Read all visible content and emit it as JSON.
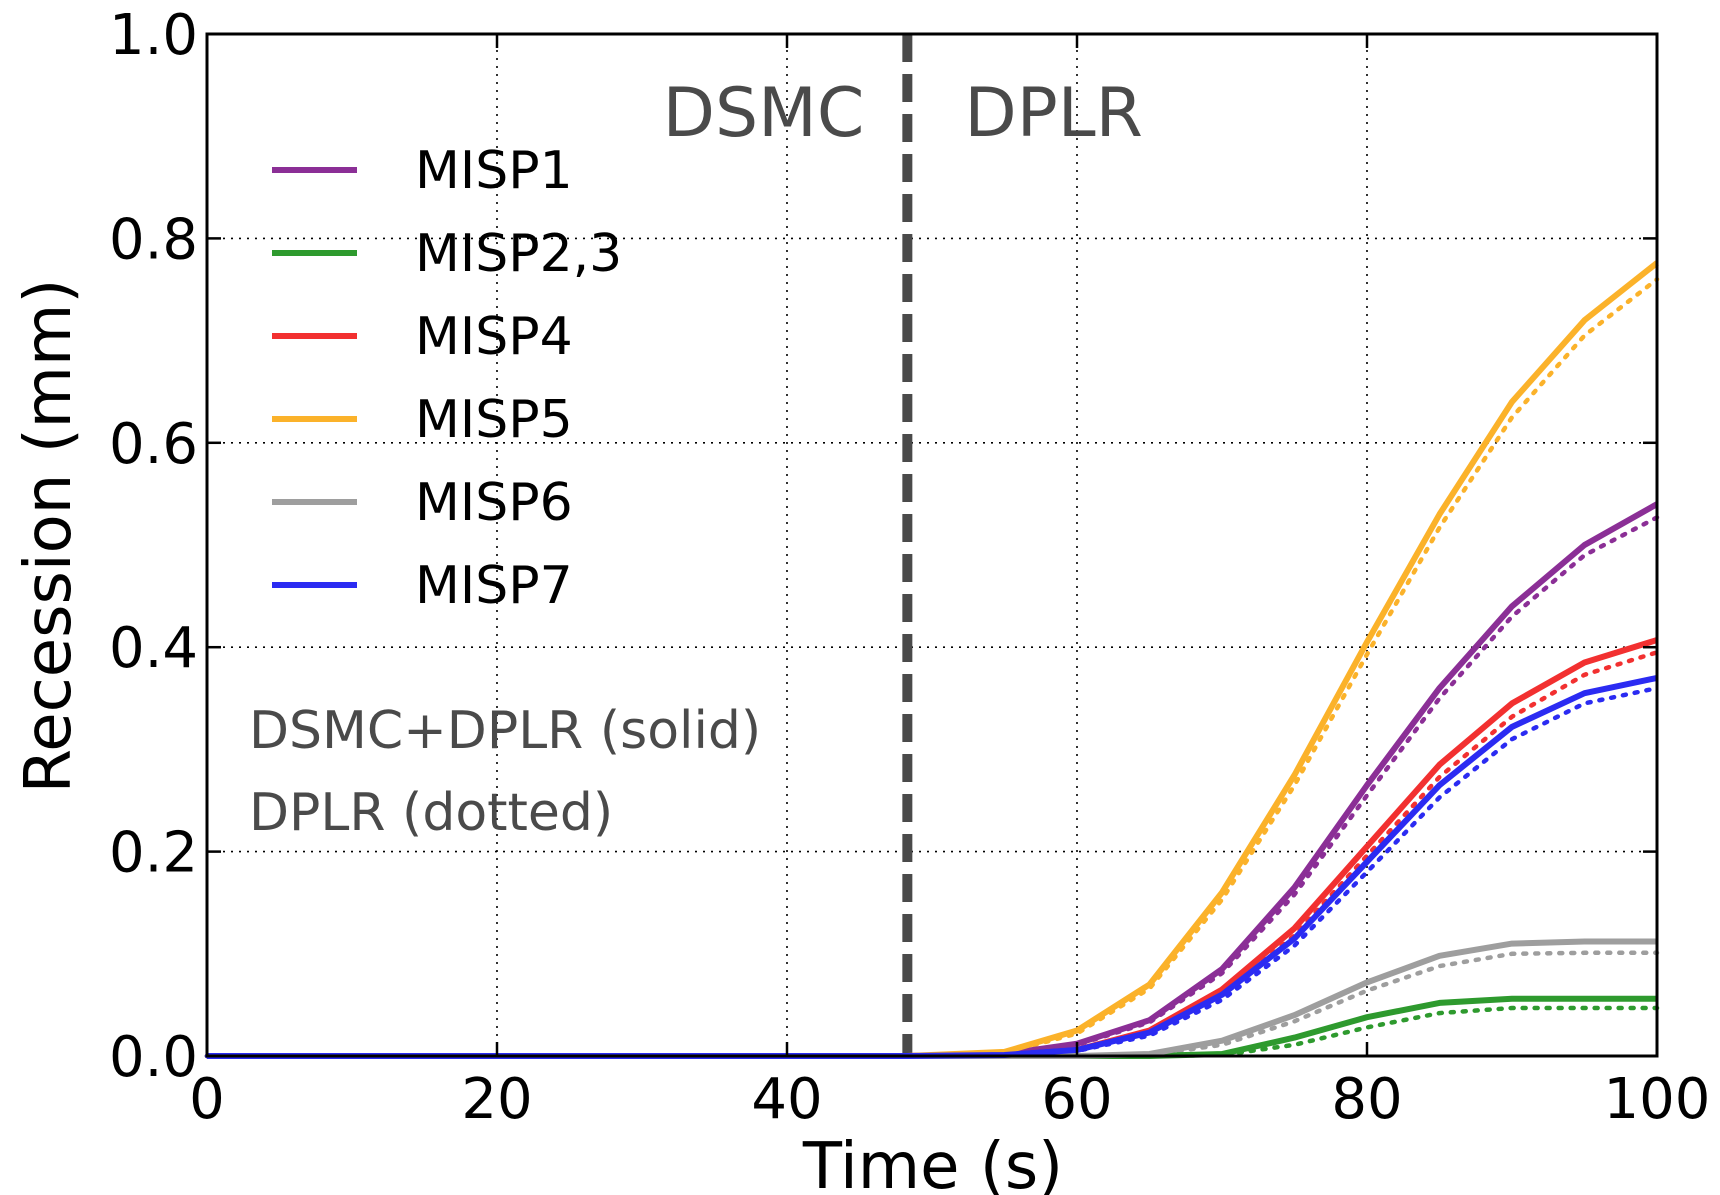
{
  "chart_data": {
    "type": "line",
    "title": "",
    "xlabel": "Time (s)",
    "ylabel": "Recession (mm)",
    "xlim": [
      0,
      100
    ],
    "ylim": [
      0,
      1.0
    ],
    "xticks": [
      0,
      20,
      40,
      60,
      80,
      100
    ],
    "yticks": [
      0.0,
      0.2,
      0.4,
      0.6,
      0.8,
      1.0
    ],
    "xtick_labels": [
      "0",
      "20",
      "40",
      "60",
      "80",
      "100"
    ],
    "ytick_labels": [
      "0.0",
      "0.2",
      "0.4",
      "0.6",
      "0.8",
      "1.0"
    ],
    "grid": true,
    "legend_placement": "upper-left",
    "divider": {
      "x": 48.3,
      "left_label": "DSMC",
      "right_label": "DPLR",
      "color": "#4a4a4a"
    },
    "notes": [
      "DSMC+DPLR (solid)",
      "DPLR (dotted)"
    ],
    "x": [
      0,
      48.3,
      55,
      60,
      65,
      70,
      75,
      80,
      85,
      90,
      95,
      100
    ],
    "series": [
      {
        "name": "MISP1",
        "color": "#8b2f96",
        "solid": [
          0,
          0,
          0.002,
          0.012,
          0.035,
          0.085,
          0.165,
          0.265,
          0.36,
          0.44,
          0.5,
          0.54
        ],
        "dotted": [
          0,
          0,
          0.002,
          0.011,
          0.033,
          0.081,
          0.158,
          0.255,
          0.35,
          0.43,
          0.49,
          0.527
        ]
      },
      {
        "name": "MISP2,3",
        "color": "#2e9a2e",
        "solid": [
          0,
          0,
          0,
          0,
          0,
          0.002,
          0.018,
          0.038,
          0.052,
          0.056,
          0.056,
          0.056
        ],
        "dotted": [
          0,
          0,
          0,
          0,
          0,
          0.001,
          0.011,
          0.028,
          0.042,
          0.047,
          0.047,
          0.047
        ]
      },
      {
        "name": "MISP4",
        "color": "#f23030",
        "solid": [
          0,
          0,
          0.001,
          0.006,
          0.025,
          0.065,
          0.125,
          0.205,
          0.285,
          0.345,
          0.385,
          0.407
        ],
        "dotted": [
          0,
          0,
          0.001,
          0.005,
          0.022,
          0.06,
          0.118,
          0.196,
          0.273,
          0.332,
          0.373,
          0.395
        ]
      },
      {
        "name": "MISP5",
        "color": "#fbb22a",
        "solid": [
          0,
          0,
          0.004,
          0.025,
          0.07,
          0.16,
          0.275,
          0.405,
          0.53,
          0.64,
          0.72,
          0.776
        ],
        "dotted": [
          0,
          0,
          0.003,
          0.022,
          0.066,
          0.153,
          0.265,
          0.393,
          0.517,
          0.625,
          0.705,
          0.76
        ]
      },
      {
        "name": "MISP6",
        "color": "#9e9e9e",
        "solid": [
          0,
          0,
          0,
          0,
          0.002,
          0.015,
          0.04,
          0.072,
          0.098,
          0.11,
          0.112,
          0.112
        ],
        "dotted": [
          0,
          0,
          0,
          0,
          0.001,
          0.011,
          0.034,
          0.064,
          0.088,
          0.1,
          0.101,
          0.101
        ]
      },
      {
        "name": "MISP7",
        "color": "#2b2bf2",
        "solid": [
          0,
          0,
          0.001,
          0.006,
          0.023,
          0.06,
          0.115,
          0.19,
          0.265,
          0.322,
          0.355,
          0.37
        ],
        "dotted": [
          0,
          0,
          0.001,
          0.005,
          0.02,
          0.055,
          0.108,
          0.18,
          0.253,
          0.31,
          0.345,
          0.36
        ]
      }
    ]
  }
}
